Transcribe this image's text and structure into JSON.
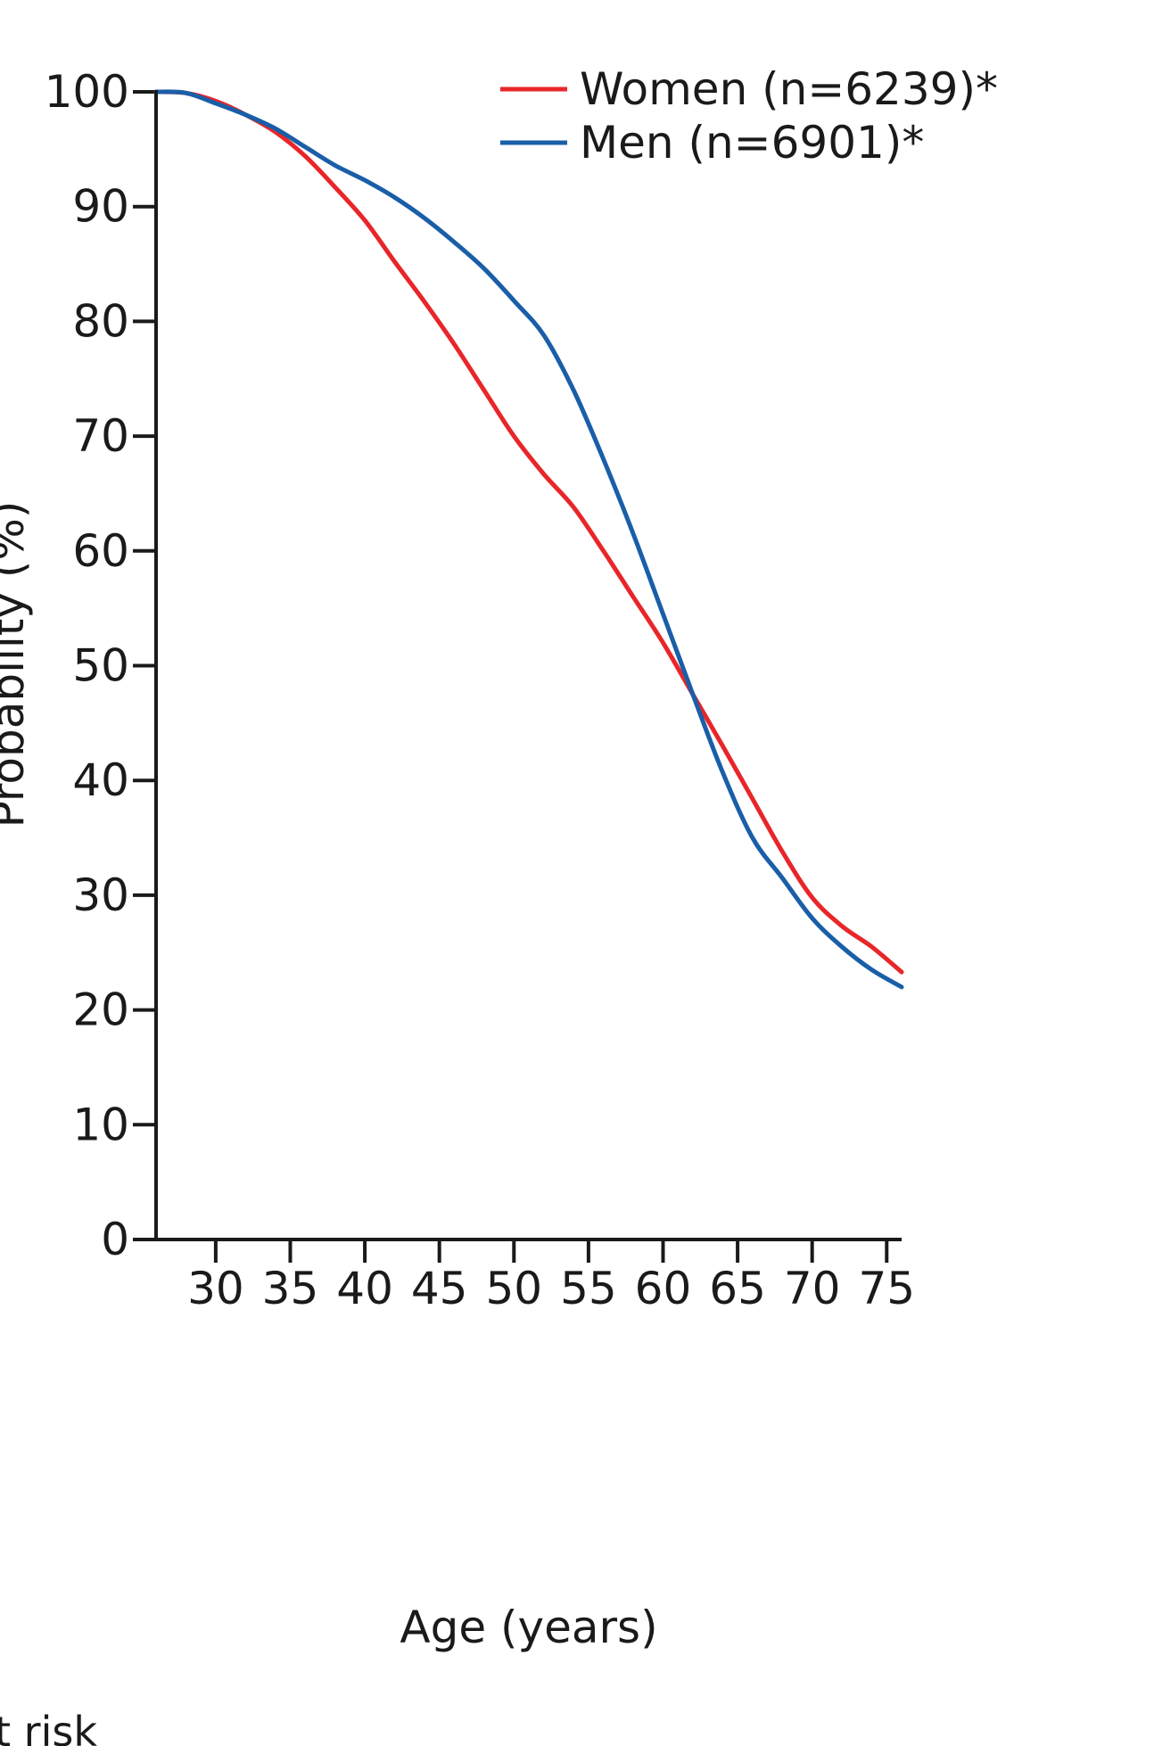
{
  "chart_data": {
    "type": "line",
    "title": "",
    "xlabel": "Age (years)",
    "ylabel": "Probability (%)",
    "xlim": [
      26,
      76
    ],
    "ylim": [
      0,
      100
    ],
    "x_ticks": [
      30,
      35,
      40,
      45,
      50,
      55,
      60,
      65,
      70,
      75
    ],
    "y_ticks": [
      0,
      10,
      20,
      30,
      40,
      50,
      60,
      70,
      80,
      90,
      100
    ],
    "grid": false,
    "legend_position": "top-right",
    "series": [
      {
        "name": "Women (n=6239)*",
        "color": "#e8262a",
        "x": [
          26,
          28,
          30,
          32,
          34,
          36,
          38,
          40,
          42,
          44,
          46,
          48,
          50,
          52,
          54,
          56,
          58,
          60,
          62,
          64,
          66,
          68,
          70,
          72,
          74,
          76
        ],
        "y": [
          100,
          99.9,
          99.2,
          98,
          96.5,
          94.4,
          91.7,
          88.8,
          85.2,
          81.7,
          78,
          74,
          70,
          66.7,
          63.8,
          60,
          56,
          52,
          47.5,
          43,
          38.4,
          33.8,
          29.8,
          27.3,
          25.5,
          23.3
        ]
      },
      {
        "name": "Men (n=6901)*",
        "color": "#1a5ea8",
        "x": [
          26,
          28,
          30,
          32,
          34,
          36,
          38,
          40,
          42,
          44,
          46,
          48,
          50,
          52,
          54,
          56,
          58,
          60,
          62,
          64,
          66,
          68,
          70,
          72,
          74,
          76
        ],
        "y": [
          100,
          99.9,
          99,
          98,
          96.8,
          95.2,
          93.6,
          92.3,
          90.8,
          89,
          86.9,
          84.6,
          81.8,
          78.8,
          74,
          68,
          61.5,
          54.5,
          47.5,
          40.7,
          35,
          31.5,
          28,
          25.5,
          23.5,
          22
        ]
      }
    ]
  },
  "legend": {
    "items": [
      "Women (n=6239)*",
      "Men (n=6901)*"
    ]
  },
  "cropped_text": "t risk"
}
